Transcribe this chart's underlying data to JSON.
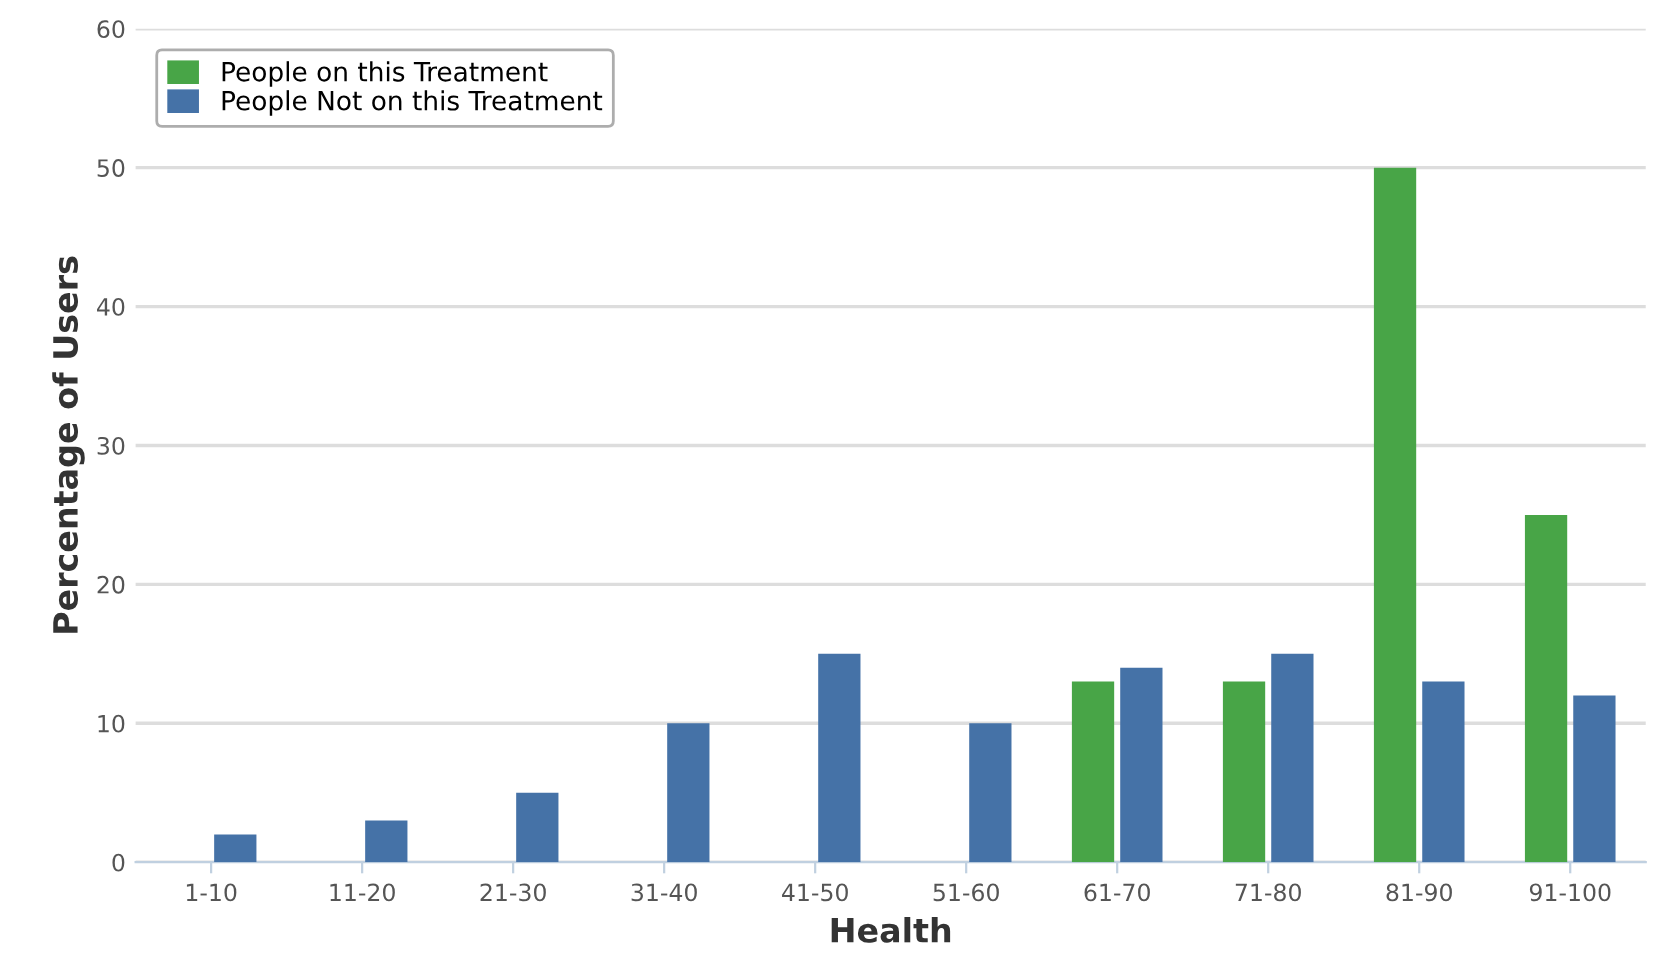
{
  "chart_data": {
    "type": "bar",
    "xlabel": "Health",
    "ylabel": "Percentage of Users",
    "categories": [
      "1-10",
      "11-20",
      "21-30",
      "31-40",
      "41-50",
      "51-60",
      "61-70",
      "71-80",
      "81-90",
      "91-100"
    ],
    "series": [
      {
        "name": "People on this Treatment",
        "color": "#48a547",
        "values": [
          null,
          null,
          null,
          null,
          null,
          null,
          13,
          13,
          50,
          25
        ]
      },
      {
        "name": "People Not on this Treatment",
        "color": "#4572a7",
        "values": [
          2,
          3,
          5,
          10,
          15,
          10,
          14,
          15,
          13,
          12
        ]
      }
    ],
    "ylim": [
      0,
      60
    ],
    "yticks": [
      0,
      10,
      20,
      30,
      40,
      50,
      60
    ],
    "grid": "y",
    "legend": "top left"
  }
}
